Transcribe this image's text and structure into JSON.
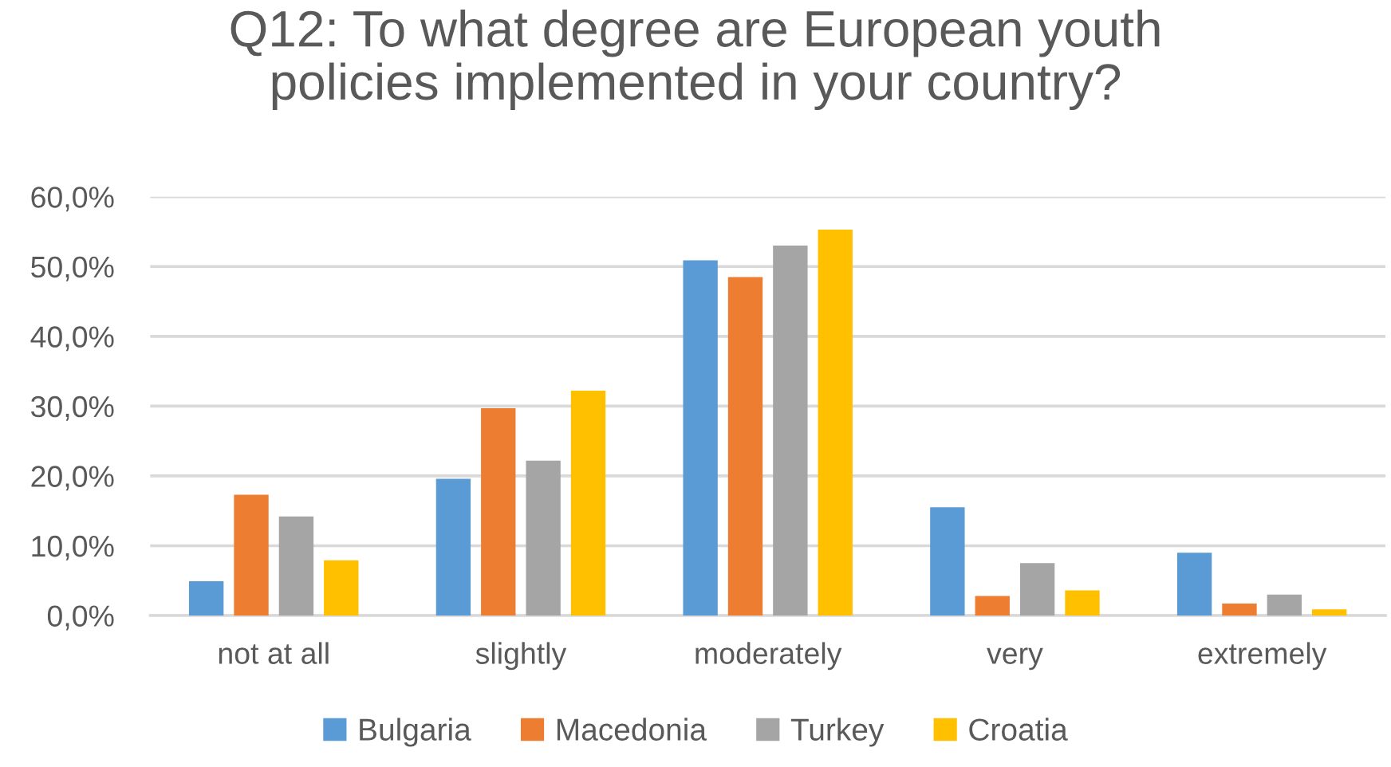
{
  "chart_data": {
    "type": "bar",
    "title": "Q12: To what degree are European youth\npolicies implemented in your country?",
    "categories": [
      "not at all",
      "slightly",
      "moderately",
      "very",
      "extremely"
    ],
    "series": [
      {
        "name": "Bulgaria",
        "color": "#5b9bd5",
        "values": [
          4.9,
          19.6,
          50.9,
          15.5,
          9.0
        ]
      },
      {
        "name": "Macedonia",
        "color": "#ed7d31",
        "values": [
          17.3,
          29.7,
          48.5,
          2.8,
          1.7
        ]
      },
      {
        "name": "Turkey",
        "color": "#a5a5a5",
        "values": [
          14.2,
          22.2,
          53.0,
          7.5,
          3.0
        ]
      },
      {
        "name": "Croatia",
        "color": "#ffc000",
        "values": [
          7.9,
          32.2,
          55.3,
          3.6,
          0.9
        ]
      }
    ],
    "ylim": [
      0,
      60
    ],
    "yticks": [
      {
        "value": 0,
        "label": "0,0%"
      },
      {
        "value": 10,
        "label": "10,0%"
      },
      {
        "value": 20,
        "label": "20,0%"
      },
      {
        "value": 30,
        "label": "30,0%"
      },
      {
        "value": 40,
        "label": "40,0%"
      },
      {
        "value": 50,
        "label": "50,0%"
      },
      {
        "value": 60,
        "label": "60,0%"
      }
    ],
    "grid": "y",
    "legend": "bottom"
  }
}
